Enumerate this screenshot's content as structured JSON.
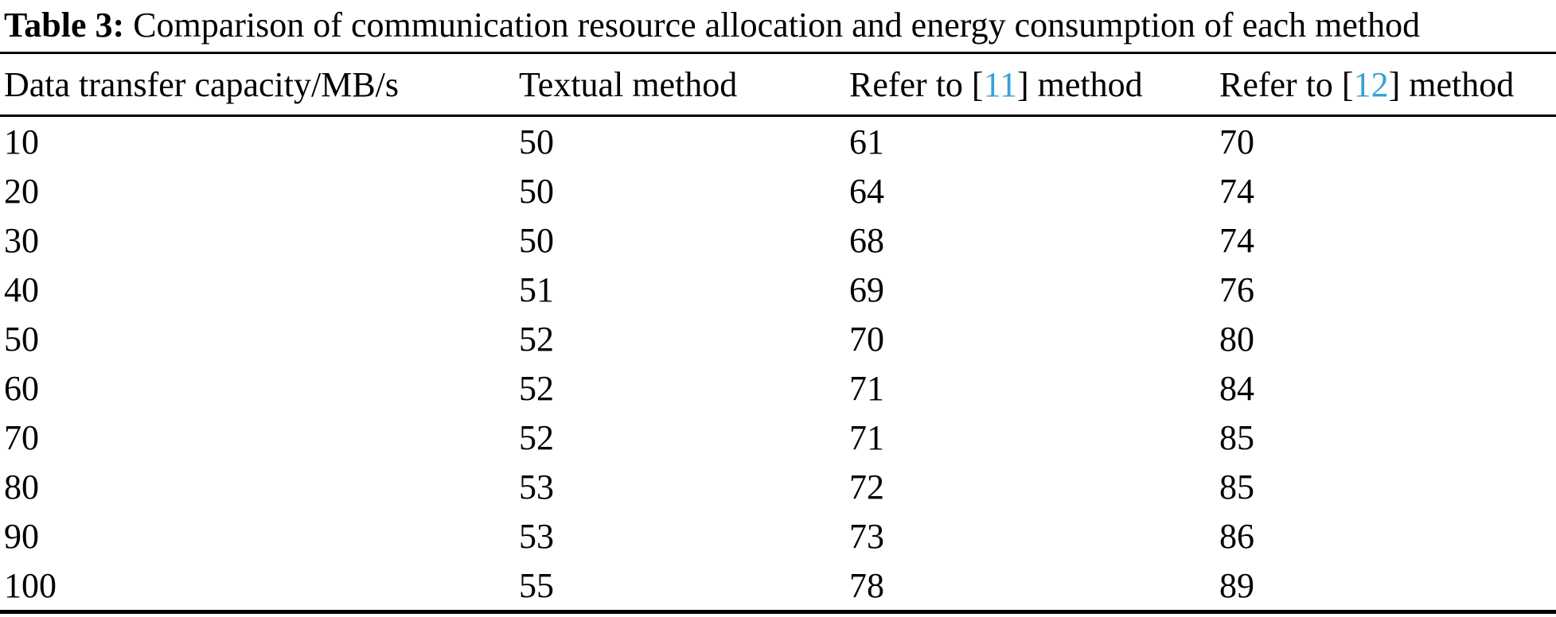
{
  "caption": {
    "label": "Table 3:",
    "text": "Comparison of communication resource allocation and energy consumption of each method"
  },
  "table": {
    "headers": [
      "Data transfer capacity/MB/s",
      "Textual method",
      {
        "prefix": "Refer to [",
        "citation": "11",
        "suffix": "] method"
      },
      {
        "prefix": "Refer to [",
        "citation": "12",
        "suffix": "] method"
      }
    ],
    "rows": [
      [
        "10",
        "50",
        "61",
        "70"
      ],
      [
        "20",
        "50",
        "64",
        "74"
      ],
      [
        "30",
        "50",
        "68",
        "74"
      ],
      [
        "40",
        "51",
        "69",
        "76"
      ],
      [
        "50",
        "52",
        "70",
        "80"
      ],
      [
        "60",
        "52",
        "71",
        "84"
      ],
      [
        "70",
        "52",
        "71",
        "85"
      ],
      [
        "80",
        "53",
        "72",
        "85"
      ],
      [
        "90",
        "53",
        "73",
        "86"
      ],
      [
        "100",
        "55",
        "78",
        "89"
      ]
    ]
  },
  "chart_data": {
    "type": "table",
    "title": "Table 3: Comparison of communication resource allocation and energy consumption of each method",
    "categories": [
      10,
      20,
      30,
      40,
      50,
      60,
      70,
      80,
      90,
      100
    ],
    "xlabel": "Data transfer capacity/MB/s",
    "series": [
      {
        "name": "Textual method",
        "values": [
          50,
          50,
          50,
          51,
          52,
          52,
          52,
          53,
          53,
          55
        ]
      },
      {
        "name": "Refer to [11] method",
        "values": [
          61,
          64,
          68,
          69,
          70,
          71,
          71,
          72,
          73,
          78
        ]
      },
      {
        "name": "Refer to [12] method",
        "values": [
          70,
          74,
          74,
          76,
          80,
          84,
          85,
          85,
          86,
          89
        ]
      }
    ]
  },
  "colors": {
    "text": "#000000",
    "citation_link": "#35a1d8",
    "background": "#ffffff"
  }
}
